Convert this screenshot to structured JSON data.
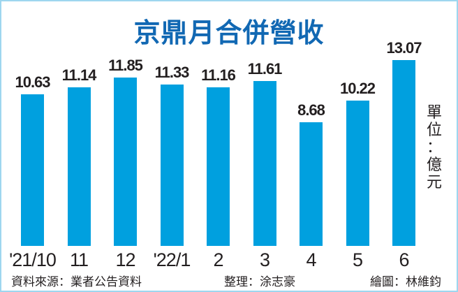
{
  "title": "京鼎月合併營收",
  "unit_label": "單位：億元",
  "unit_chars": [
    "單",
    "位",
    "：",
    "億",
    "元"
  ],
  "footer": {
    "source": "資料來源：業者公告資料",
    "editor": "整理：涂志豪",
    "illustrator": "繪圖：林維鈞"
  },
  "colors": {
    "bar": "#00a0df",
    "title": "#1168b3",
    "border": "#9ed6ef",
    "text": "#231f20"
  },
  "chart_data": {
    "type": "bar",
    "title": "京鼎月合併營收",
    "categories": [
      "'21/10",
      "11",
      "12",
      "'22/1",
      "2",
      "3",
      "4",
      "5",
      "6"
    ],
    "values": [
      10.63,
      11.14,
      11.85,
      11.33,
      11.16,
      11.61,
      8.68,
      10.22,
      13.07
    ],
    "value_labels": [
      "10.63",
      "11.14",
      "11.85",
      "11.33",
      "11.16",
      "11.61",
      "8.68",
      "10.22",
      "13.07"
    ],
    "xlabel": "",
    "ylabel": "單位：億元",
    "grid": false,
    "legend": "none",
    "ylim": [
      0,
      14
    ]
  }
}
